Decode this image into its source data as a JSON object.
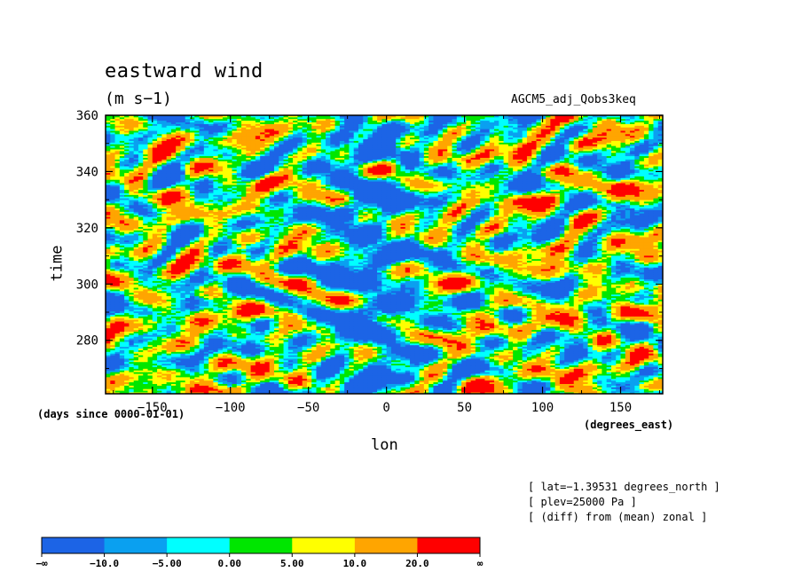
{
  "header": {
    "title": "eastward wind",
    "units": "(m s−1)",
    "run_name": "AGCM5_adj_Qobs3keq"
  },
  "axes": {
    "x_title": "lon",
    "x_unit_note": "(degrees_east)",
    "y_title": "time",
    "time_unit_note": "(days since 0000-01-01)"
  },
  "info": {
    "lines": [
      "[ lat=−1.39531 degrees_north ]",
      "[ plev=25000 Pa ]",
      "[ (diff) from (mean) zonal ]"
    ]
  },
  "colors": {
    "levels": [
      "#1c64e6",
      "#0aa0f0",
      "#00ffff",
      "#00e600",
      "#ffff00",
      "#ffa500",
      "#ff0000"
    ],
    "frame": "#000000"
  },
  "chart_data": {
    "type": "heatmap",
    "title": "eastward wind",
    "subtitle": "(m s−1)",
    "xlabel": "lon",
    "ylabel": "time",
    "xlim": [
      -180,
      177
    ],
    "ylim": [
      261,
      360
    ],
    "x_ticks": [
      -150,
      -100,
      -50,
      0,
      50,
      100,
      150
    ],
    "x_tick_labels": [
      "−150",
      "−100",
      "−50",
      "0",
      "50",
      "100",
      "150"
    ],
    "y_ticks": [
      280,
      300,
      320,
      340,
      360
    ],
    "y_tick_labels": [
      "280",
      "300",
      "320",
      "340",
      "360"
    ],
    "color_levels": {
      "boundaries": [
        -10,
        -5,
        0,
        5,
        10,
        20
      ],
      "labels": [
        "−∞",
        "−10.0",
        "−5.00",
        "0.00",
        "5.00",
        "10.0",
        "20.0",
        "∞"
      ]
    },
    "features": {
      "negative_band_center_lon": -10,
      "negative_band_half_width_lon": 28,
      "eastward_propagating_positive_streaks": true
    }
  }
}
